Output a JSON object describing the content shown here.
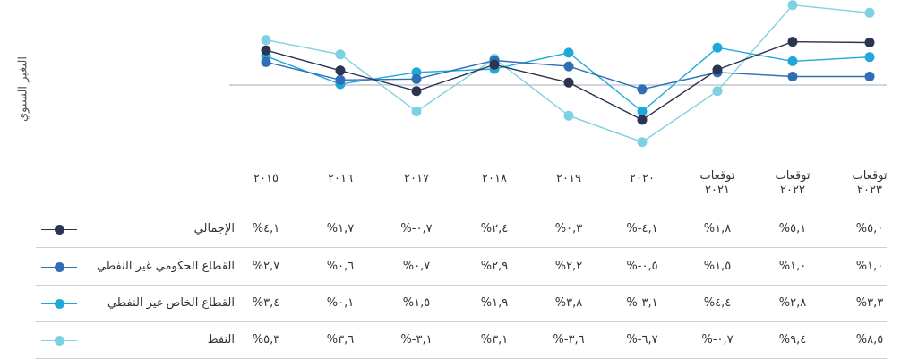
{
  "chart_data": {
    "type": "line",
    "ylabel": "التغير السنوي",
    "categories": [
      "٢٠١٥",
      "٢٠١٦",
      "٢٠١٧",
      "٢٠١٨",
      "٢٠١٩",
      "٢٠٢٠",
      "توقعات ٢٠٢١",
      "توقعات ٢٠٢٢",
      "توقعات ٢٠٢٣"
    ],
    "series": [
      {
        "name": "الإجمالي",
        "color": "#2b3450",
        "values": [
          4.1,
          1.7,
          -0.7,
          2.4,
          0.3,
          -4.1,
          1.8,
          5.1,
          5.0
        ],
        "labels": [
          "%٤,١",
          "%١,٧",
          "%-٠,٧",
          "%٢,٤",
          "%٠,٣",
          "%-٤,١",
          "%١,٨",
          "%٥,١",
          "%٥,٠"
        ]
      },
      {
        "name": "القطاع الحكومي غير النفطي",
        "color": "#2f6fb5",
        "values": [
          2.7,
          0.6,
          0.7,
          2.9,
          2.2,
          -0.5,
          1.5,
          1.0,
          1.0
        ],
        "labels": [
          "%٢,٧",
          "%٠,٦",
          "%٠,٧",
          "%٢,٩",
          "%٢,٢",
          "%-٠,٥",
          "%١,٥",
          "%١,٠",
          "%١,٠"
        ]
      },
      {
        "name": "القطاع الخاص غير النفطي",
        "color": "#21a8db",
        "values": [
          3.4,
          0.1,
          1.5,
          1.9,
          3.8,
          -3.1,
          4.4,
          2.8,
          3.3
        ],
        "labels": [
          "%٣,٤",
          "%٠,١",
          "%١,٥",
          "%١,٩",
          "%٣,٨",
          "%-٣,١",
          "%٤,٤",
          "%٢,٨",
          "%٣,٣"
        ]
      },
      {
        "name": "النفط",
        "color": "#7fd0e2",
        "values": [
          5.3,
          3.6,
          -3.1,
          3.1,
          -3.6,
          -6.7,
          -0.7,
          9.4,
          8.5
        ],
        "labels": [
          "%٥,٣",
          "%٣,٦",
          "%-٣,١",
          "%٣,١",
          "%-٣,٦",
          "%-٦,٧",
          "%-٠,٧",
          "%٩,٤",
          "%٨,٥"
        ]
      }
    ]
  }
}
